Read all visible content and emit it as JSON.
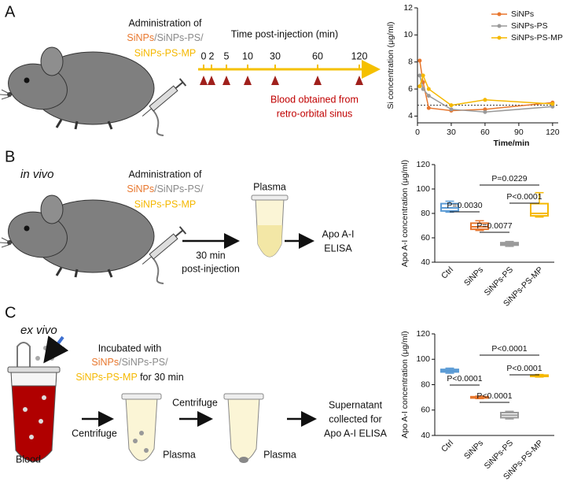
{
  "panel_a": {
    "label": "A",
    "admin": [
      "Administration of",
      "SiNPs",
      "/SiNPs-PS/",
      "SiNPs-PS-MP"
    ],
    "timeline_title": "Time post-injection (min)",
    "timeline_ticks": [
      0,
      2,
      5,
      10,
      30,
      60,
      120
    ],
    "blood": [
      "Blood obtained from",
      "retro-orbital sinus"
    ]
  },
  "panel_b": {
    "label": "B",
    "condition": "in vivo",
    "admin": [
      "Administration of",
      "SiNPs",
      "/SiNPs-PS/",
      "SiNPs-PS-MP"
    ],
    "arrow_label": [
      "30 min",
      "post-injection"
    ],
    "tube_label": "Plasma",
    "assay": [
      "Apo A-I",
      "ELISA"
    ]
  },
  "panel_c": {
    "label": "C",
    "condition": "ex vivo",
    "incubation": [
      "Incubated with",
      "SiNPs",
      "/SiNPs-PS/",
      "SiNPs-PS-MP",
      " for 30 min"
    ],
    "blood": "Blood",
    "centrifuge": [
      "Centrifuge",
      "Centrifuge"
    ],
    "plasma": [
      "Plasma",
      "Plasma"
    ],
    "output": [
      "Supernatant",
      "collected for",
      "Apo A-I ELISA"
    ]
  },
  "chart_data": [
    {
      "type": "line",
      "ylabel": "Si concentration (μg/ml)",
      "xlabel": "Time/min",
      "x": [
        2,
        5,
        10,
        30,
        60,
        120
      ],
      "xlim": [
        0,
        125
      ],
      "xticks": [
        0,
        30,
        60,
        90,
        120
      ],
      "ylim": [
        3.5,
        12
      ],
      "yticks": [
        4,
        6,
        8,
        10,
        12
      ],
      "reference_line": 4.8,
      "series": [
        {
          "name": "SiNPs",
          "color": "#e8772e",
          "values": [
            8.1,
            6.5,
            4.6,
            4.4,
            4.5,
            5.0
          ]
        },
        {
          "name": "SiNPs-PS",
          "color": "#9a9a9a",
          "values": [
            7.0,
            6.0,
            5.5,
            4.5,
            4.3,
            4.7
          ]
        },
        {
          "name": "SiNPs-PS-MP",
          "color": "#f5b800",
          "values": [
            6.2,
            7.0,
            6.0,
            4.8,
            5.2,
            4.9
          ]
        }
      ]
    },
    {
      "type": "box",
      "ylabel": "Apo A-I concentration (μg/ml)",
      "categories": [
        "Ctrl",
        "SiNPs",
        "SiNPs-PS",
        "SiNPs-PS-MP"
      ],
      "colors": [
        "#5b9bd5",
        "#e8772e",
        "#9a9a9a",
        "#f5b800"
      ],
      "boxes": [
        {
          "min": 81,
          "q1": 82,
          "median": 84.5,
          "q3": 88,
          "max": 90
        },
        {
          "min": 66,
          "q1": 67,
          "median": 69,
          "q3": 72,
          "max": 74
        },
        {
          "min": 53,
          "q1": 54,
          "median": 55,
          "q3": 56,
          "max": 57
        },
        {
          "min": 77,
          "q1": 78,
          "median": 80,
          "q3": 88,
          "max": 97
        }
      ],
      "ylim": [
        40,
        120
      ],
      "yticks": [
        40,
        60,
        80,
        100,
        120
      ],
      "significance": [
        "P=0.0229",
        "P<0.0001",
        "P=0.0030",
        "P=0.0077"
      ]
    },
    {
      "type": "box",
      "ylabel": "Apo A-I concentration (μg/ml)",
      "categories": [
        "Ctrl",
        "SiNPs",
        "SiNPs-PS",
        "SiNPs-PS-MP"
      ],
      "colors": [
        "#5b9bd5",
        "#e8772e",
        "#9a9a9a",
        "#f5b800"
      ],
      "boxes": [
        {
          "min": 89,
          "q1": 90,
          "median": 91,
          "q3": 92,
          "max": 93
        },
        {
          "min": 69,
          "q1": 69.5,
          "median": 70,
          "q3": 70.5,
          "max": 71
        },
        {
          "min": 53,
          "q1": 54,
          "median": 56,
          "q3": 58,
          "max": 59
        },
        {
          "min": 86,
          "q1": 86.5,
          "median": 87,
          "q3": 87.5,
          "max": 88
        }
      ],
      "ylim": [
        40,
        120
      ],
      "yticks": [
        40,
        60,
        80,
        100,
        120
      ],
      "significance": [
        "P<0.0001",
        "P<0.0001",
        "P<0.0001",
        "P<0.0001"
      ]
    }
  ]
}
